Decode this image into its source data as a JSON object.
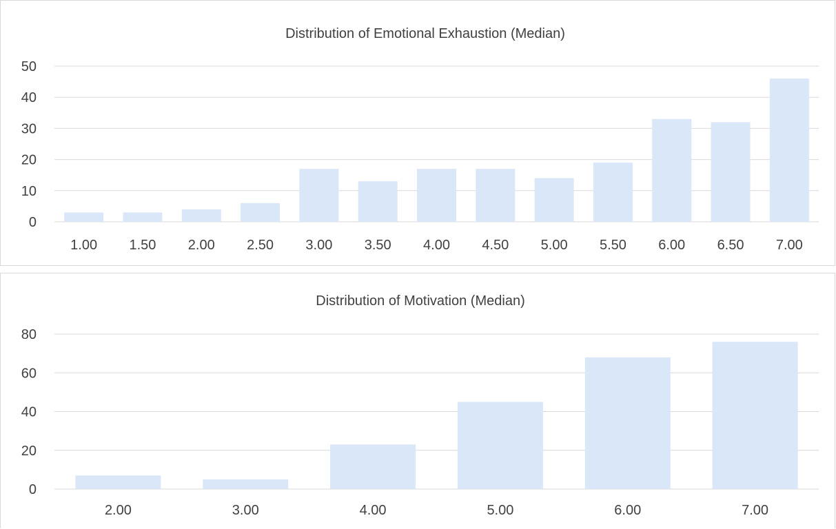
{
  "chart_data": [
    {
      "type": "bar",
      "title": "Distribution of Emotional Exhaustion (Median)",
      "xlabel": "",
      "ylabel": "",
      "categories": [
        "1.00",
        "1.50",
        "2.00",
        "2.50",
        "3.00",
        "3.50",
        "4.00",
        "4.50",
        "5.00",
        "5.50",
        "6.00",
        "6.50",
        "7.00"
      ],
      "values": [
        3,
        3,
        4,
        6,
        17,
        13,
        17,
        17,
        14,
        19,
        33,
        32,
        46
      ],
      "ylim": [
        0,
        50
      ],
      "yticks": [
        "0",
        "10",
        "20",
        "30",
        "40",
        "50"
      ],
      "grid": true,
      "legend": "none",
      "bar_color": "#dae7f8",
      "grid_color": "#d9d9d9",
      "text_color": "#404040"
    },
    {
      "type": "bar",
      "title": "Distribution of Motivation (Median)",
      "xlabel": "",
      "ylabel": "",
      "categories": [
        "2.00",
        "3.00",
        "4.00",
        "5.00",
        "6.00",
        "7.00"
      ],
      "values": [
        7,
        5,
        23,
        45,
        68,
        76
      ],
      "ylim": [
        0,
        80
      ],
      "yticks": [
        "0",
        "20",
        "40",
        "60",
        "80"
      ],
      "grid": true,
      "legend": "none",
      "bar_color": "#dae7f8",
      "grid_color": "#d9d9d9",
      "text_color": "#404040"
    }
  ]
}
